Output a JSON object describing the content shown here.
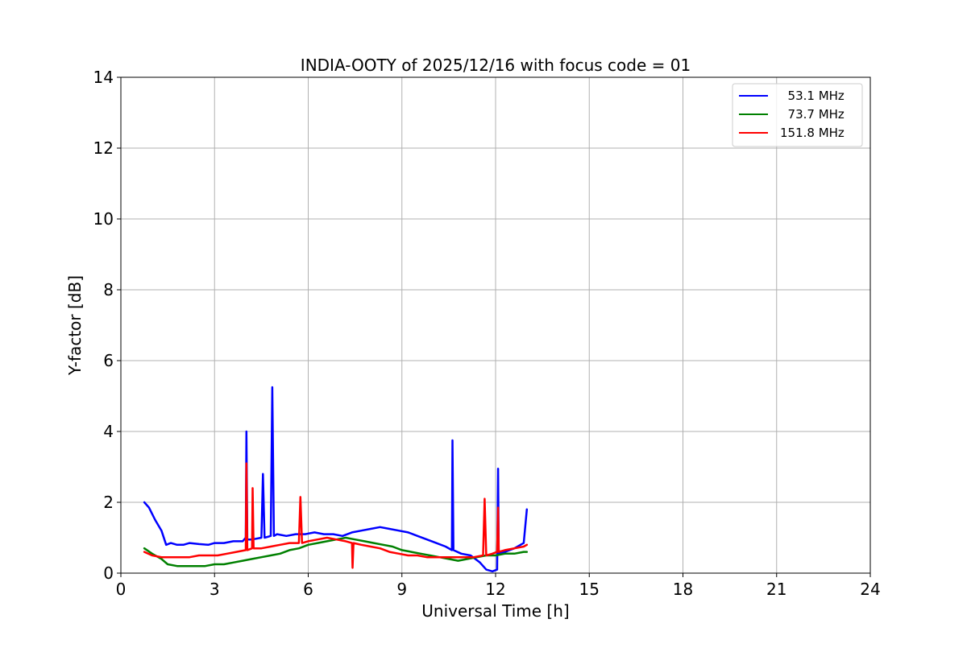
{
  "chart_data": {
    "type": "line",
    "title": "INDIA-OOTY of 2025/12/16 with focus code = 01",
    "xlabel": "Universal Time [h]",
    "ylabel": "Y-factor [dB]",
    "xlim": [
      0,
      24
    ],
    "ylim": [
      0,
      14
    ],
    "xticks": [
      "0",
      "3",
      "6",
      "9",
      "12",
      "15",
      "18",
      "21",
      "24"
    ],
    "yticks": [
      "0",
      "2",
      "4",
      "6",
      "8",
      "10",
      "12",
      "14"
    ],
    "grid": true,
    "legend_position": "top-right",
    "series": [
      {
        "name": "53.1 MHz",
        "legend_label": "  53.1 MHz",
        "color": "#0000ff",
        "x": [
          0.75,
          0.9,
          1.1,
          1.3,
          1.45,
          1.6,
          1.8,
          2.0,
          2.2,
          2.5,
          2.8,
          3.0,
          3.3,
          3.6,
          3.9,
          4.0,
          4.02,
          4.05,
          4.2,
          4.5,
          4.55,
          4.6,
          4.8,
          4.85,
          4.9,
          5.0,
          5.3,
          5.6,
          5.9,
          6.2,
          6.5,
          6.8,
          7.1,
          7.4,
          7.7,
          8.0,
          8.3,
          8.6,
          8.9,
          9.2,
          9.5,
          9.8,
          10.1,
          10.4,
          10.6,
          10.62,
          10.65,
          10.9,
          11.2,
          11.5,
          11.7,
          11.9,
          12.05,
          12.08,
          12.1,
          12.3,
          12.6,
          12.9,
          13.0
        ],
        "y": [
          2.0,
          1.85,
          1.5,
          1.2,
          0.8,
          0.85,
          0.8,
          0.8,
          0.85,
          0.82,
          0.8,
          0.85,
          0.85,
          0.9,
          0.9,
          1.0,
          4.0,
          0.95,
          0.95,
          1.0,
          2.8,
          1.0,
          1.05,
          5.25,
          1.05,
          1.1,
          1.05,
          1.1,
          1.1,
          1.15,
          1.1,
          1.1,
          1.05,
          1.15,
          1.2,
          1.25,
          1.3,
          1.25,
          1.2,
          1.15,
          1.05,
          0.95,
          0.85,
          0.75,
          0.65,
          3.75,
          0.65,
          0.55,
          0.5,
          0.3,
          0.1,
          0.05,
          0.1,
          2.95,
          0.55,
          0.6,
          0.7,
          0.85,
          1.8
        ]
      },
      {
        "name": "73.7 MHz",
        "legend_label": "  73.7 MHz",
        "color": "#008000",
        "x": [
          0.75,
          1.0,
          1.3,
          1.5,
          1.8,
          2.1,
          2.4,
          2.7,
          3.0,
          3.3,
          3.6,
          3.9,
          4.2,
          4.5,
          4.8,
          5.1,
          5.4,
          5.7,
          6.0,
          6.3,
          6.6,
          6.9,
          7.2,
          7.5,
          7.8,
          8.1,
          8.4,
          8.7,
          9.0,
          9.3,
          9.6,
          9.9,
          10.2,
          10.5,
          10.8,
          11.1,
          11.4,
          11.7,
          12.0,
          12.3,
          12.6,
          12.9,
          13.0
        ],
        "y": [
          0.7,
          0.55,
          0.4,
          0.25,
          0.2,
          0.2,
          0.2,
          0.2,
          0.25,
          0.25,
          0.3,
          0.35,
          0.4,
          0.45,
          0.5,
          0.55,
          0.65,
          0.7,
          0.8,
          0.85,
          0.9,
          0.95,
          1.0,
          0.95,
          0.9,
          0.85,
          0.8,
          0.75,
          0.65,
          0.6,
          0.55,
          0.5,
          0.45,
          0.4,
          0.35,
          0.4,
          0.45,
          0.5,
          0.5,
          0.55,
          0.55,
          0.6,
          0.6
        ]
      },
      {
        "name": "151.8 MHz",
        "legend_label": "151.8 MHz",
        "color": "#ff0000",
        "x": [
          0.75,
          1.0,
          1.3,
          1.6,
          1.9,
          2.2,
          2.5,
          2.8,
          3.1,
          3.4,
          3.7,
          4.0,
          4.02,
          4.05,
          4.2,
          4.22,
          4.25,
          4.5,
          4.8,
          5.1,
          5.4,
          5.7,
          5.75,
          5.8,
          6.0,
          6.3,
          6.6,
          6.9,
          7.2,
          7.4,
          7.42,
          7.45,
          7.7,
          8.0,
          8.3,
          8.6,
          8.9,
          9.2,
          9.5,
          9.8,
          10.1,
          10.4,
          10.7,
          11.0,
          11.3,
          11.6,
          11.65,
          11.7,
          11.9,
          12.05,
          12.08,
          12.1,
          12.3,
          12.6,
          12.9,
          13.0
        ],
        "y": [
          0.6,
          0.5,
          0.45,
          0.45,
          0.45,
          0.45,
          0.5,
          0.5,
          0.5,
          0.55,
          0.6,
          0.65,
          3.1,
          0.65,
          0.7,
          2.4,
          0.7,
          0.7,
          0.75,
          0.8,
          0.85,
          0.85,
          2.15,
          0.85,
          0.9,
          0.95,
          1.0,
          0.95,
          0.9,
          0.85,
          0.15,
          0.85,
          0.8,
          0.75,
          0.7,
          0.6,
          0.55,
          0.5,
          0.5,
          0.45,
          0.45,
          0.45,
          0.45,
          0.45,
          0.45,
          0.5,
          2.1,
          0.5,
          0.55,
          0.6,
          1.85,
          0.6,
          0.65,
          0.7,
          0.75,
          0.8
        ]
      }
    ]
  }
}
